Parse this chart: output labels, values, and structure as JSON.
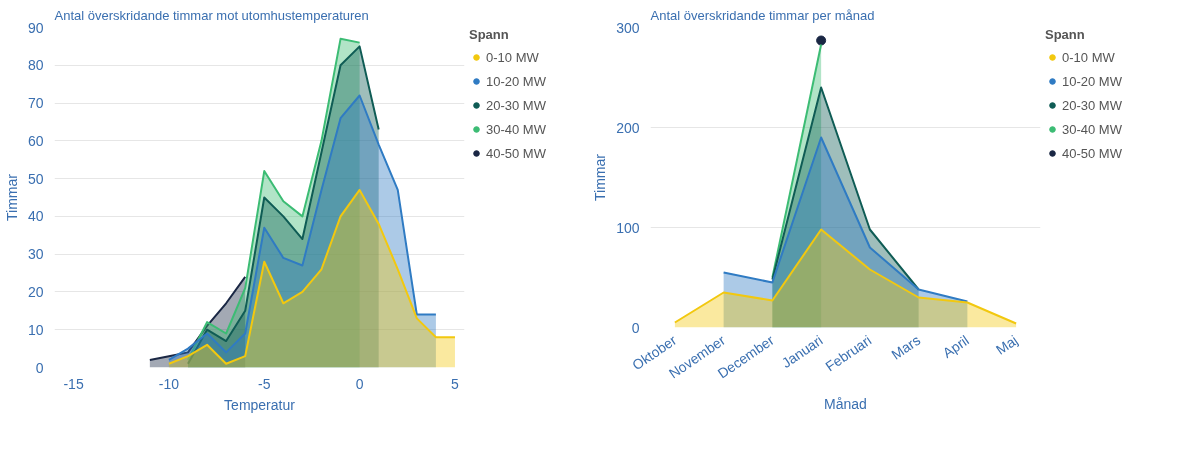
{
  "chart_data": [
    {
      "type": "area",
      "title": "Antal överskridande timmar mot utomhustemperaturen",
      "xlabel": "Temperatur",
      "ylabel": "Timmar",
      "legend_title": "Spann",
      "legend": "top right",
      "grid": "y",
      "x": [
        -11,
        -10,
        -9,
        -8,
        -7,
        -6,
        -5,
        -4,
        -3,
        -2,
        -1,
        0,
        1,
        2,
        3,
        4,
        5
      ],
      "xlim": [
        -16,
        5.5
      ],
      "xticks": [
        -15,
        -10,
        -5,
        0,
        5
      ],
      "ylim": [
        0,
        90
      ],
      "yticks": [
        0,
        10,
        20,
        30,
        40,
        50,
        60,
        70,
        80,
        90
      ],
      "series": [
        {
          "name": "0-10 MW",
          "color": "#f2c80f",
          "values": [
            null,
            1,
            3,
            6,
            1,
            3,
            28,
            17,
            20,
            26,
            40,
            47,
            38,
            26,
            13,
            8,
            8
          ]
        },
        {
          "name": "10-20 MW",
          "color": "#2f7bc3",
          "values": [
            null,
            2,
            5,
            9,
            4,
            9,
            37,
            29,
            27,
            47,
            66,
            72,
            59,
            47,
            14,
            14,
            null
          ]
        },
        {
          "name": "20-30 MW",
          "color": "#0f5c55",
          "values": [
            null,
            null,
            1,
            10,
            7,
            15,
            45,
            40,
            34,
            57,
            80,
            85,
            63,
            null,
            null,
            null,
            null
          ]
        },
        {
          "name": "30-40 MW",
          "color": "#3cbc74",
          "values": [
            null,
            null,
            2,
            12,
            9,
            21,
            52,
            44,
            40,
            60,
            87,
            86,
            null,
            null,
            null,
            null,
            null
          ]
        },
        {
          "name": "40-50 MW",
          "color": "#1a2744",
          "values": [
            2,
            3,
            4,
            11,
            17,
            24,
            null,
            null,
            null,
            null,
            null,
            null,
            null,
            null,
            null,
            null,
            null
          ]
        }
      ]
    },
    {
      "type": "area",
      "title": "Antal överskridande timmar per månad",
      "xlabel": "Månad",
      "ylabel": "Timmar",
      "legend_title": "Spann",
      "legend": "top right",
      "grid": "y",
      "categories": [
        "Oktober",
        "November",
        "December",
        "Januari",
        "Februari",
        "Mars",
        "April",
        "Maj"
      ],
      "ylim": [
        0,
        300
      ],
      "yticks": [
        0,
        100,
        200,
        300
      ],
      "series": [
        {
          "name": "0-10 MW",
          "color": "#f2c80f",
          "values": [
            5,
            35,
            27,
            98,
            58,
            30,
            25,
            4
          ]
        },
        {
          "name": "10-20 MW",
          "color": "#2f7bc3",
          "values": [
            null,
            55,
            45,
            190,
            80,
            38,
            26,
            null
          ]
        },
        {
          "name": "20-30 MW",
          "color": "#0f5c55",
          "values": [
            null,
            null,
            48,
            240,
            98,
            38,
            null,
            null
          ]
        },
        {
          "name": "30-40 MW",
          "color": "#3cbc74",
          "values": [
            null,
            null,
            50,
            283,
            null,
            null,
            null,
            null
          ]
        },
        {
          "name": "40-50 MW",
          "color": "#1a2744",
          "type": "scatter",
          "marker": "circle",
          "values": [
            null,
            null,
            null,
            287,
            null,
            null,
            null,
            null
          ]
        }
      ]
    }
  ]
}
